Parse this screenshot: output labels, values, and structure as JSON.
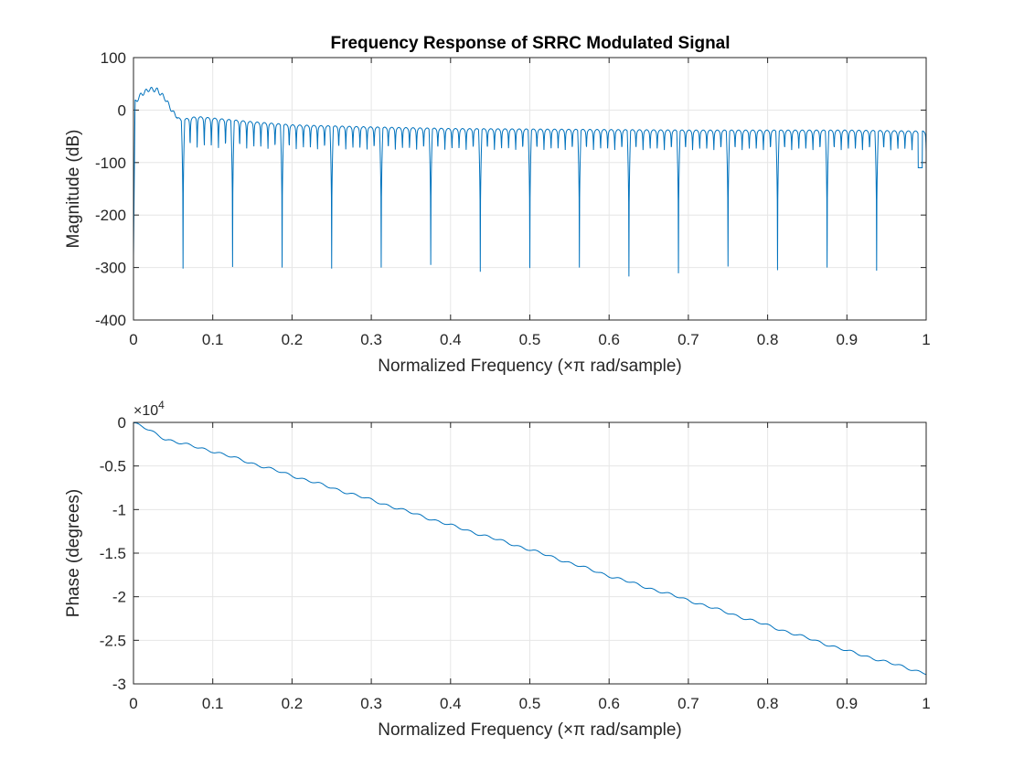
{
  "figure": {
    "title": "Frequency Response of SRRC Modulated Signal"
  },
  "colors": {
    "line": "#0072bd",
    "grid": "#e6e6e6",
    "axis": "#262626",
    "text": "#262626",
    "background": "#ffffff"
  },
  "chart_data": [
    {
      "type": "line",
      "title": "Frequency Response of SRRC Modulated Signal",
      "xlabel": "Normalized Frequency  (×π rad/sample)",
      "ylabel": "Magnitude (dB)",
      "xlim": [
        0,
        1
      ],
      "ylim": [
        -400,
        100
      ],
      "xticks": [
        "0",
        "0.1",
        "0.2",
        "0.3",
        "0.4",
        "0.5",
        "0.6",
        "0.7",
        "0.8",
        "0.9",
        "1"
      ],
      "yticks": [
        "100",
        "0",
        "-100",
        "-200",
        "-300",
        "-400"
      ],
      "grid": true,
      "series": [
        {
          "envelope": {
            "x": [
              0,
              0.002,
              0.01,
              0.02,
              0.03,
              0.04,
              0.05,
              0.06,
              0.08,
              0.1,
              0.15,
              0.2,
              0.3,
              0.4,
              0.5,
              0.6,
              0.7,
              0.8,
              0.9,
              1.0
            ],
            "y": [
              -280,
              15,
              30,
              40,
              38,
              22,
              -5,
              -18,
              -12,
              -15,
              -22,
              -28,
              -32,
              -35,
              -36,
              -37,
              -38,
              -38,
              -38,
              -40
            ]
          },
          "deep_nulls": [
            {
              "x": 0.0625,
              "y": -302
            },
            {
              "x": 0.125,
              "y": -299
            },
            {
              "x": 0.1875,
              "y": -300
            },
            {
              "x": 0.25,
              "y": -302
            },
            {
              "x": 0.3125,
              "y": -300
            },
            {
              "x": 0.375,
              "y": -295
            },
            {
              "x": 0.4375,
              "y": -308
            },
            {
              "x": 0.5,
              "y": -301
            },
            {
              "x": 0.5625,
              "y": -300
            },
            {
              "x": 0.625,
              "y": -317
            },
            {
              "x": 0.6875,
              "y": -311
            },
            {
              "x": 0.75,
              "y": -298
            },
            {
              "x": 0.8125,
              "y": -305
            },
            {
              "x": 0.875,
              "y": -300
            },
            {
              "x": 0.9375,
              "y": -306
            }
          ],
          "sidelobe_null_depth": -75,
          "sidelobes_per_null_interval": 7,
          "end_dip": {
            "x": [
              0.99,
              0.995
            ],
            "y": [
              -110,
              -112
            ]
          }
        }
      ]
    },
    {
      "type": "line",
      "xlabel": "Normalized Frequency  (×π rad/sample)",
      "ylabel": "Phase (degrees)",
      "xlim": [
        0,
        1
      ],
      "ylim": [
        -30000,
        0
      ],
      "xticks": [
        "0",
        "0.1",
        "0.2",
        "0.3",
        "0.4",
        "0.5",
        "0.6",
        "0.7",
        "0.8",
        "0.9",
        "1"
      ],
      "yticks": [
        "0",
        "-0.5",
        "-1",
        "-1.5",
        "-2",
        "-2.5",
        "-3"
      ],
      "exponent_prefix": "×10",
      "exponent_power": "4",
      "grid": true,
      "series": [
        {
          "x": [
            0,
            0.02,
            0.04,
            0.06,
            0.1,
            0.2,
            0.3,
            0.4,
            0.5,
            0.6,
            0.7,
            0.8,
            0.9,
            1.0
          ],
          "y": [
            -50,
            -900,
            -1900,
            -2400,
            -3300,
            -6100,
            -8900,
            -11800,
            -14600,
            -17600,
            -20400,
            -23300,
            -26200,
            -28800
          ]
        }
      ]
    }
  ]
}
